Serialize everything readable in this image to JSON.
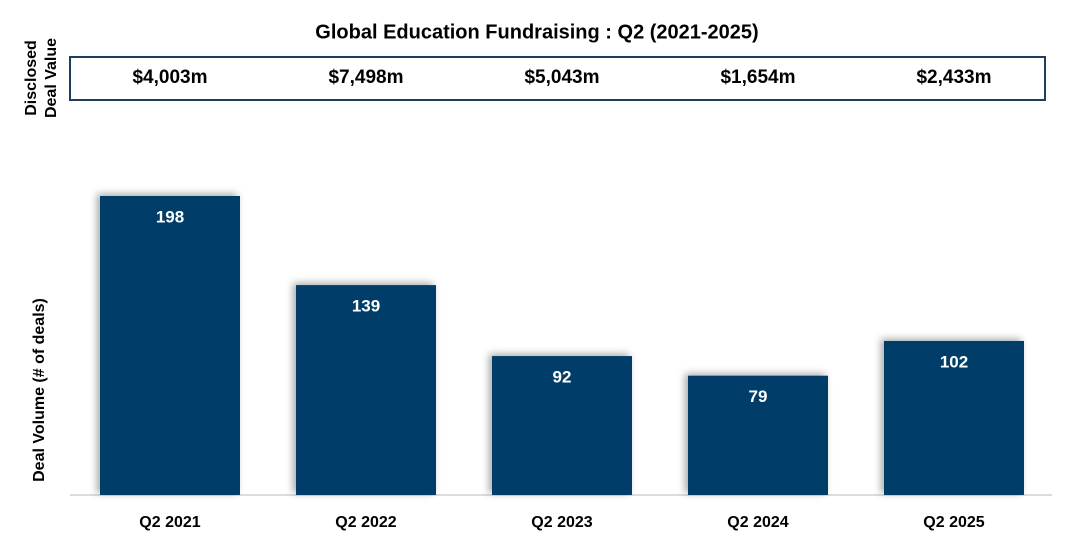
{
  "chart_data": {
    "type": "bar",
    "title": "Global Education Fundraising : Q2 (2021-2025)",
    "deal_value_title": [
      "Disclosed",
      "Deal Value"
    ],
    "deal_value_labels": [
      "$4,003m",
      "$7,498m",
      "$5,043m",
      "$1,654m",
      "$2,433m"
    ],
    "y_label": "Deal Volume (# of deals)",
    "categories": [
      "Q2 2021",
      "Q2 2022",
      "Q2 2023",
      "Q2 2024",
      "Q2 2025"
    ],
    "values": [
      198,
      139,
      92,
      79,
      102
    ],
    "color": "#023e68"
  }
}
